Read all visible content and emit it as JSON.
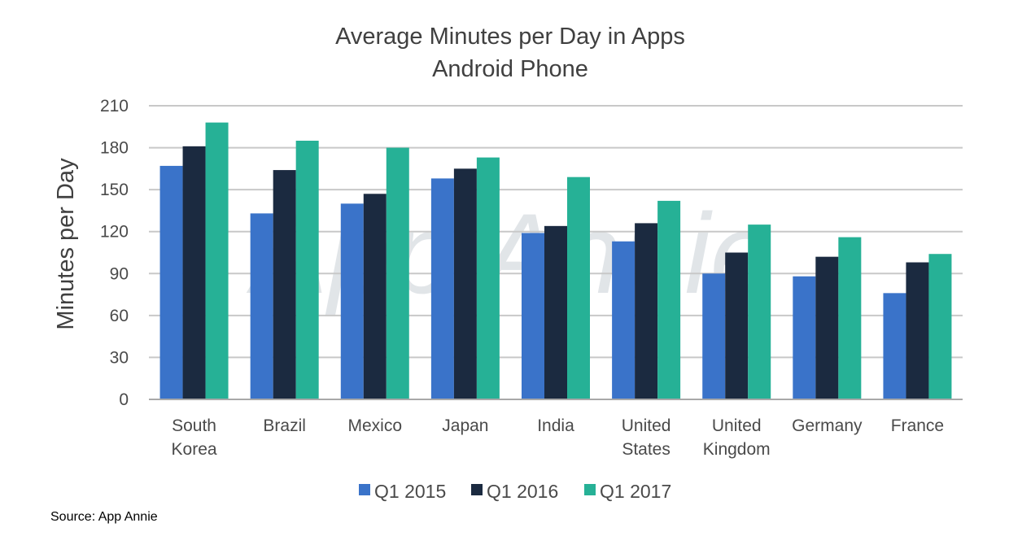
{
  "chart_data": {
    "type": "bar",
    "title": "Average Minutes per Day in Apps",
    "subtitle": "Android Phone",
    "ylabel": "Minutes per Day",
    "xlabel": "",
    "ylim": [
      0,
      210
    ],
    "yticks": [
      0,
      30,
      60,
      90,
      120,
      150,
      180,
      210
    ],
    "grid": true,
    "legend_position": "bottom",
    "watermark": "App Annie",
    "categories": [
      [
        "South",
        "Korea"
      ],
      [
        "Brazil"
      ],
      [
        "Mexico"
      ],
      [
        "Japan"
      ],
      [
        "India"
      ],
      [
        "United",
        "States"
      ],
      [
        "United",
        "Kingdom"
      ],
      [
        "Germany"
      ],
      [
        "France"
      ]
    ],
    "series": [
      {
        "name": "Q1 2015",
        "color": "#3a73c9",
        "values": [
          167,
          133,
          140,
          158,
          119,
          113,
          90,
          88,
          76
        ]
      },
      {
        "name": "Q1 2016",
        "color": "#1b2a40",
        "values": [
          181,
          164,
          147,
          165,
          124,
          126,
          105,
          102,
          98
        ]
      },
      {
        "name": "Q1 2017",
        "color": "#26b196",
        "values": [
          198,
          185,
          180,
          173,
          159,
          142,
          125,
          116,
          104
        ]
      }
    ]
  },
  "footer": {
    "source": "Source: App Annie"
  }
}
